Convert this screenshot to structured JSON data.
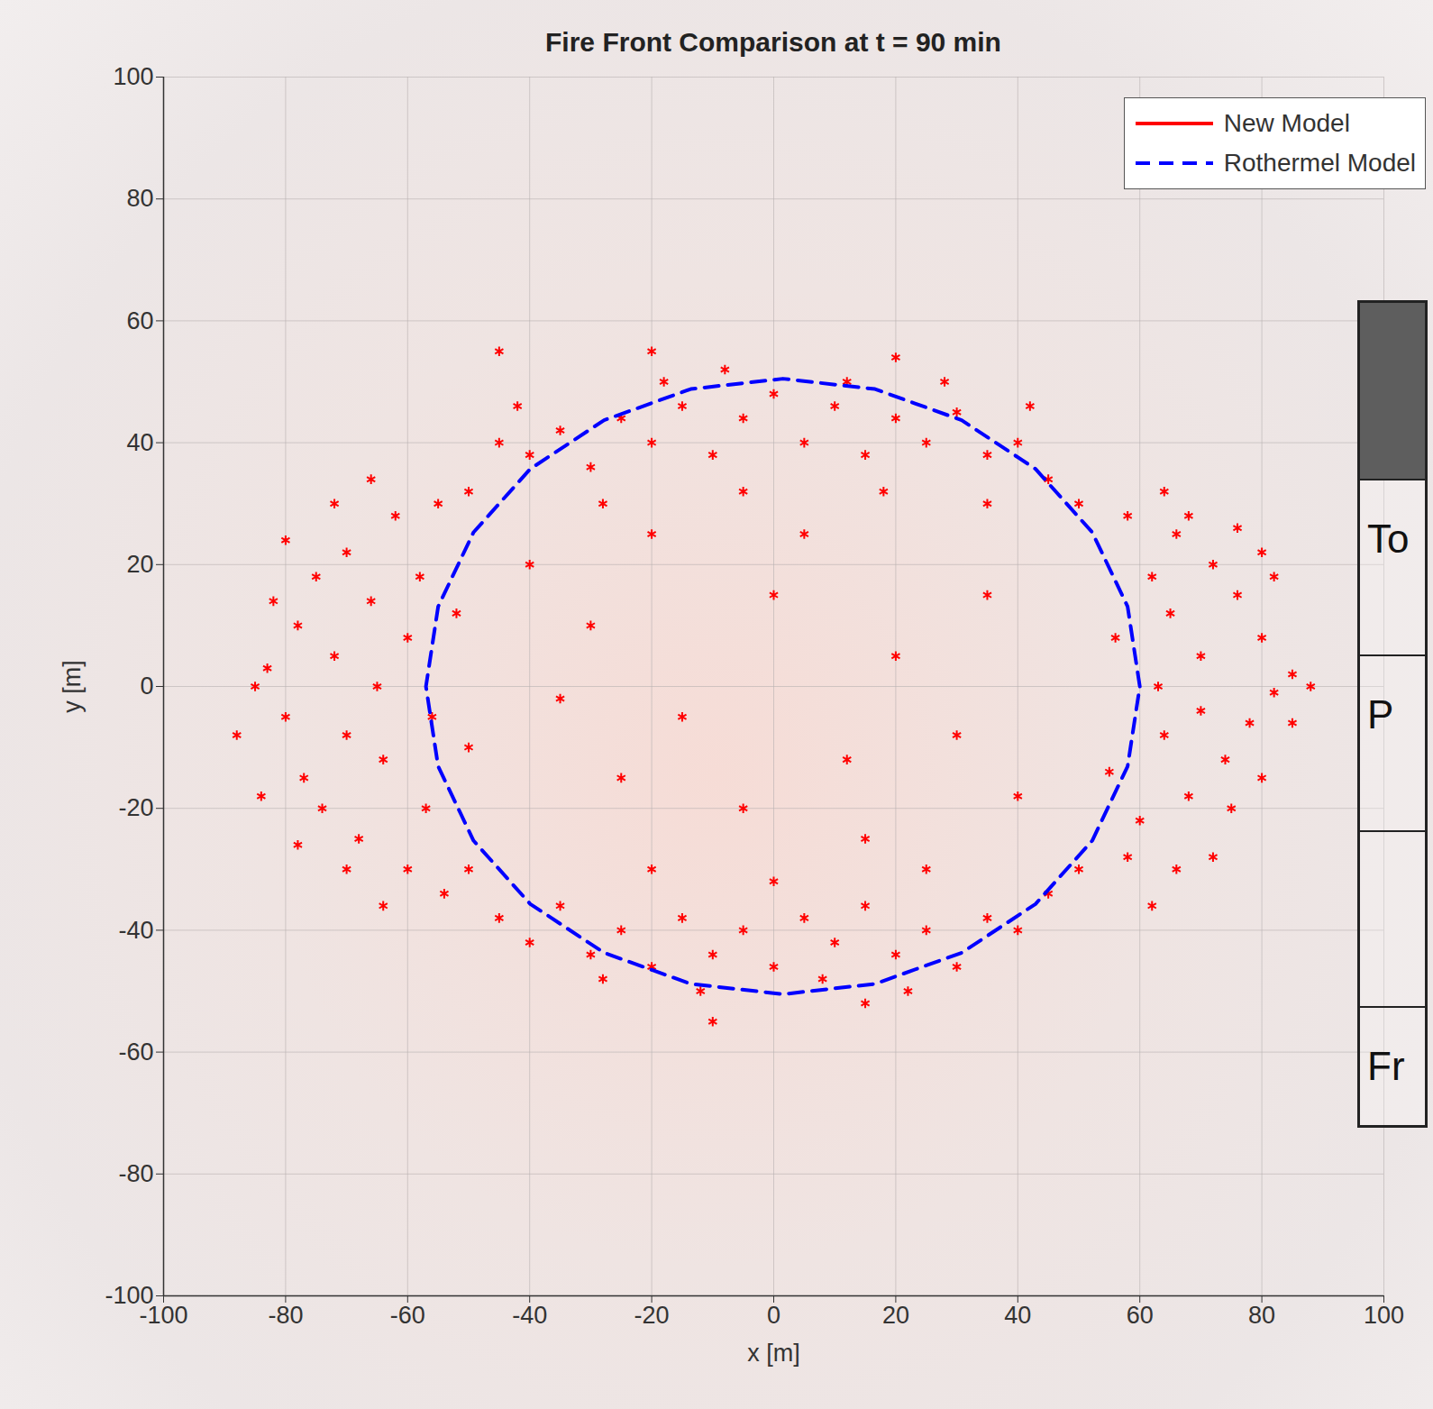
{
  "chart_data": {
    "type": "scatter",
    "title": "Fire Front Comparison at t = 90 min",
    "x_label": "x [m]",
    "y_label": "y [m]",
    "xlim": [
      -100,
      100
    ],
    "ylim": [
      -100,
      100
    ],
    "xticks": [
      -100,
      -80,
      -60,
      -40,
      -20,
      0,
      20,
      40,
      60,
      80,
      100
    ],
    "yticks": [
      -100,
      -80,
      -60,
      -40,
      -20,
      0,
      20,
      40,
      60,
      80,
      100
    ],
    "grid": true,
    "legend": "top-right",
    "series": [
      {
        "name": "New Model",
        "color": "#ff0000",
        "type": "scatter",
        "marker": "asterisk",
        "line_style": "solid",
        "values": [
          [
            88,
            0
          ],
          [
            85,
            2
          ],
          [
            82,
            -1
          ],
          [
            80,
            8
          ],
          [
            78,
            -6
          ],
          [
            76,
            15
          ],
          [
            74,
            -12
          ],
          [
            72,
            20
          ],
          [
            70,
            5
          ],
          [
            70,
            -4
          ],
          [
            68,
            -18
          ],
          [
            66,
            25
          ],
          [
            65,
            12
          ],
          [
            64,
            -8
          ],
          [
            63,
            0
          ],
          [
            62,
            18
          ],
          [
            60,
            -22
          ],
          [
            58,
            28
          ],
          [
            58,
            -28
          ],
          [
            56,
            8
          ],
          [
            55,
            -14
          ],
          [
            82,
            18
          ],
          [
            80,
            -15
          ],
          [
            85,
            -6
          ],
          [
            75,
            -20
          ],
          [
            72,
            -28
          ],
          [
            66,
            -30
          ],
          [
            62,
            -36
          ],
          [
            68,
            28
          ],
          [
            64,
            32
          ],
          [
            76,
            26
          ],
          [
            80,
            22
          ],
          [
            -85,
            0
          ],
          [
            -83,
            3
          ],
          [
            -80,
            -5
          ],
          [
            -78,
            10
          ],
          [
            -77,
            -15
          ],
          [
            -75,
            18
          ],
          [
            -74,
            -20
          ],
          [
            -72,
            5
          ],
          [
            -70,
            -8
          ],
          [
            -70,
            22
          ],
          [
            -68,
            -25
          ],
          [
            -66,
            14
          ],
          [
            -65,
            0
          ],
          [
            -64,
            -12
          ],
          [
            -62,
            28
          ],
          [
            -60,
            -30
          ],
          [
            -60,
            8
          ],
          [
            -58,
            18
          ],
          [
            -57,
            -20
          ],
          [
            -56,
            -5
          ],
          [
            -55,
            30
          ],
          [
            -54,
            -34
          ],
          [
            -52,
            12
          ],
          [
            -50,
            -10
          ],
          [
            -88,
            -8
          ],
          [
            -82,
            14
          ],
          [
            -84,
            -18
          ],
          [
            -72,
            30
          ],
          [
            -70,
            -30
          ],
          [
            -66,
            34
          ],
          [
            -64,
            -36
          ],
          [
            -80,
            24
          ],
          [
            -78,
            -26
          ],
          [
            -45,
            40
          ],
          [
            -40,
            38
          ],
          [
            -35,
            42
          ],
          [
            -30,
            36
          ],
          [
            -25,
            44
          ],
          [
            -20,
            40
          ],
          [
            -15,
            46
          ],
          [
            -10,
            38
          ],
          [
            -5,
            44
          ],
          [
            0,
            48
          ],
          [
            5,
            40
          ],
          [
            10,
            46
          ],
          [
            15,
            38
          ],
          [
            20,
            44
          ],
          [
            25,
            40
          ],
          [
            30,
            45
          ],
          [
            35,
            38
          ],
          [
            40,
            40
          ],
          [
            45,
            34
          ],
          [
            50,
            30
          ],
          [
            -50,
            32
          ],
          [
            -42,
            46
          ],
          [
            -18,
            50
          ],
          [
            -8,
            52
          ],
          [
            12,
            50
          ],
          [
            28,
            50
          ],
          [
            42,
            46
          ],
          [
            -28,
            30
          ],
          [
            -5,
            32
          ],
          [
            18,
            32
          ],
          [
            35,
            30
          ],
          [
            -45,
            55
          ],
          [
            -20,
            55
          ],
          [
            20,
            54
          ],
          [
            -45,
            -38
          ],
          [
            -40,
            -42
          ],
          [
            -35,
            -36
          ],
          [
            -30,
            -44
          ],
          [
            -25,
            -40
          ],
          [
            -20,
            -46
          ],
          [
            -15,
            -38
          ],
          [
            -10,
            -44
          ],
          [
            -5,
            -40
          ],
          [
            0,
            -46
          ],
          [
            5,
            -38
          ],
          [
            10,
            -42
          ],
          [
            15,
            -36
          ],
          [
            20,
            -44
          ],
          [
            25,
            -40
          ],
          [
            30,
            -46
          ],
          [
            35,
            -38
          ],
          [
            40,
            -40
          ],
          [
            45,
            -34
          ],
          [
            50,
            -30
          ],
          [
            -50,
            -30
          ],
          [
            -28,
            -48
          ],
          [
            -12,
            -50
          ],
          [
            8,
            -48
          ],
          [
            22,
            -50
          ],
          [
            -20,
            -30
          ],
          [
            0,
            -32
          ],
          [
            25,
            -30
          ],
          [
            -10,
            -55
          ],
          [
            15,
            -52
          ],
          [
            -30,
            10
          ],
          [
            -15,
            -5
          ],
          [
            0,
            15
          ],
          [
            12,
            -12
          ],
          [
            20,
            5
          ],
          [
            -5,
            -20
          ],
          [
            -25,
            -15
          ],
          [
            30,
            -8
          ],
          [
            5,
            25
          ],
          [
            -35,
            -2
          ],
          [
            35,
            15
          ],
          [
            -20,
            25
          ],
          [
            15,
            -25
          ],
          [
            40,
            -18
          ],
          [
            -40,
            20
          ]
        ]
      },
      {
        "name": "Rothermel Model",
        "color": "#0000ff",
        "type": "line",
        "line_style": "dashed",
        "values": [
          [
            60,
            0
          ],
          [
            58.0,
            13.1
          ],
          [
            52.2,
            25.3
          ],
          [
            42.9,
            35.7
          ],
          [
            30.8,
            43.7
          ],
          [
            16.6,
            48.8
          ],
          [
            1.5,
            50.5
          ],
          [
            -13.6,
            48.8
          ],
          [
            -27.8,
            43.7
          ],
          [
            -39.9,
            35.7
          ],
          [
            -49.2,
            25.3
          ],
          [
            -55.0,
            13.1
          ],
          [
            -57,
            0
          ],
          [
            -55.0,
            -13.1
          ],
          [
            -49.2,
            -25.3
          ],
          [
            -39.9,
            -35.7
          ],
          [
            -27.8,
            -43.7
          ],
          [
            -13.6,
            -48.8
          ],
          [
            1.5,
            -50.5
          ],
          [
            16.6,
            -48.8
          ],
          [
            30.8,
            -43.7
          ],
          [
            42.9,
            -35.7
          ],
          [
            52.2,
            -25.3
          ],
          [
            58.0,
            -13.1
          ],
          [
            60,
            0
          ]
        ]
      }
    ]
  },
  "table": {
    "rows": [
      "To",
      "P",
      null,
      "Fr"
    ]
  }
}
